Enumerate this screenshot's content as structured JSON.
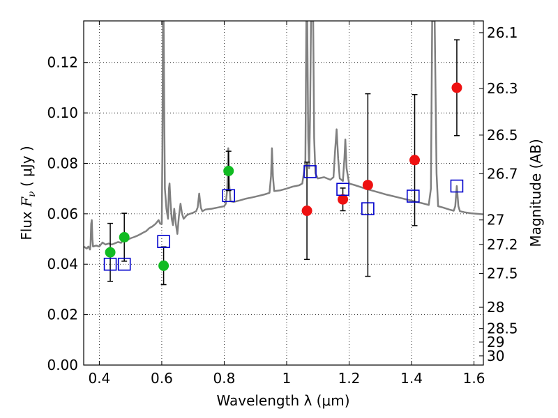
{
  "chart_data": {
    "type": "scatter",
    "title": "",
    "xlabel": "Wavelength  λ (μm)",
    "ylabel": "Flux  F_ν  ( μJy )",
    "ylabel_parts": {
      "prefix": "Flux  ",
      "symbol": "F",
      "subscript": "ν",
      "suffix": "  ( μJy )"
    },
    "y2label": "Magnitude (AB)",
    "xlim": [
      0.35,
      1.63
    ],
    "ylim": [
      0.0,
      0.1365
    ],
    "grid": true,
    "grid_style": "dotted",
    "x_ticks": [
      0.4,
      0.6,
      0.8,
      1.0,
      1.2,
      1.4,
      1.6
    ],
    "x_tick_labels": [
      "0.4",
      "0.6",
      "0.8",
      "1",
      "1.2",
      "1.4",
      "1.6"
    ],
    "y_ticks": [
      0.0,
      0.02,
      0.04,
      0.06,
      0.08,
      0.1,
      0.12
    ],
    "y_tick_labels": [
      "0.00",
      "0.02",
      "0.04",
      "0.06",
      "0.08",
      "0.10",
      "0.12"
    ],
    "y2_ticks_mag": [
      26.1,
      26.3,
      26.5,
      26.7,
      27,
      27.2,
      27.5,
      28,
      28.5,
      29,
      30
    ],
    "y2_tick_labels": [
      "26.1",
      "26.3",
      "26.5",
      "26.7",
      "27",
      "27.2",
      "27.5",
      "28",
      "28.5",
      "29",
      "30"
    ],
    "colors": {
      "spectrum": "#808080",
      "green_points": "#11bb22",
      "red_points": "#ee1111",
      "model_boxes": "#0000cc",
      "errorbar": "#000000"
    },
    "series": [
      {
        "marker": "filled-circle",
        "color_key": "green_points",
        "points": [
          {
            "x": 0.435,
            "y": 0.0447,
            "err": 0.0115
          },
          {
            "x": 0.48,
            "y": 0.0507,
            "err": 0.0095
          },
          {
            "x": 0.606,
            "y": 0.0394,
            "err": 0.0075
          },
          {
            "x": 0.814,
            "y": 0.077,
            "err": 0.0078
          }
        ]
      },
      {
        "marker": "filled-circle",
        "color_key": "red_points",
        "points": [
          {
            "x": 1.065,
            "y": 0.0612,
            "err": 0.0193
          },
          {
            "x": 1.18,
            "y": 0.0657,
            "err": 0.0045
          },
          {
            "x": 1.26,
            "y": 0.0714,
            "err": 0.0362
          },
          {
            "x": 1.41,
            "y": 0.0813,
            "err": 0.026
          },
          {
            "x": 1.545,
            "y": 0.11,
            "err": 0.019
          }
        ]
      },
      {
        "marker": "open-square",
        "color_key": "model_boxes",
        "points": [
          {
            "x": 0.435,
            "y": 0.04
          },
          {
            "x": 0.48,
            "y": 0.04
          },
          {
            "x": 0.606,
            "y": 0.049
          },
          {
            "x": 0.814,
            "y": 0.0672
          },
          {
            "x": 1.075,
            "y": 0.0767
          },
          {
            "x": 1.18,
            "y": 0.0697
          },
          {
            "x": 1.26,
            "y": 0.062
          },
          {
            "x": 1.405,
            "y": 0.067
          },
          {
            "x": 1.545,
            "y": 0.071
          }
        ]
      },
      {
        "marker": "line",
        "color_key": "spectrum",
        "points": [
          [
            0.35,
            0.047
          ],
          [
            0.36,
            0.0462
          ],
          [
            0.365,
            0.047
          ],
          [
            0.37,
            0.0458
          ],
          [
            0.372,
            0.0475
          ],
          [
            0.374,
            0.056
          ],
          [
            0.376,
            0.0575
          ],
          [
            0.378,
            0.05
          ],
          [
            0.38,
            0.047
          ],
          [
            0.39,
            0.0474
          ],
          [
            0.4,
            0.047
          ],
          [
            0.41,
            0.0486
          ],
          [
            0.42,
            0.0478
          ],
          [
            0.43,
            0.0482
          ],
          [
            0.44,
            0.0478
          ],
          [
            0.45,
            0.0483
          ],
          [
            0.46,
            0.0488
          ],
          [
            0.47,
            0.0485
          ],
          [
            0.48,
            0.05
          ],
          [
            0.49,
            0.0496
          ],
          [
            0.5,
            0.0503
          ],
          [
            0.51,
            0.0507
          ],
          [
            0.52,
            0.0512
          ],
          [
            0.53,
            0.0518
          ],
          [
            0.54,
            0.0525
          ],
          [
            0.55,
            0.0531
          ],
          [
            0.56,
            0.0543
          ],
          [
            0.57,
            0.055
          ],
          [
            0.58,
            0.056
          ],
          [
            0.59,
            0.0575
          ],
          [
            0.595,
            0.056
          ],
          [
            0.6,
            0.056
          ],
          [
            0.602,
            0.085
          ],
          [
            0.604,
            0.1365
          ],
          [
            0.606,
            0.1365
          ],
          [
            0.608,
            0.1
          ],
          [
            0.61,
            0.07
          ],
          [
            0.615,
            0.062
          ],
          [
            0.62,
            0.058
          ],
          [
            0.623,
            0.07
          ],
          [
            0.625,
            0.072
          ],
          [
            0.628,
            0.065
          ],
          [
            0.632,
            0.058
          ],
          [
            0.636,
            0.0555
          ],
          [
            0.64,
            0.062
          ],
          [
            0.645,
            0.056
          ],
          [
            0.65,
            0.052
          ],
          [
            0.655,
            0.059
          ],
          [
            0.66,
            0.064
          ],
          [
            0.665,
            0.06
          ],
          [
            0.67,
            0.058
          ],
          [
            0.68,
            0.0594
          ],
          [
            0.69,
            0.06
          ],
          [
            0.7,
            0.0604
          ],
          [
            0.71,
            0.061
          ],
          [
            0.715,
            0.0625
          ],
          [
            0.72,
            0.068
          ],
          [
            0.725,
            0.0625
          ],
          [
            0.73,
            0.061
          ],
          [
            0.74,
            0.0617
          ],
          [
            0.76,
            0.062
          ],
          [
            0.78,
            0.0625
          ],
          [
            0.8,
            0.063
          ],
          [
            0.805,
            0.064
          ],
          [
            0.81,
            0.07
          ],
          [
            0.813,
            0.086
          ],
          [
            0.816,
            0.072
          ],
          [
            0.82,
            0.065
          ],
          [
            0.83,
            0.0647
          ],
          [
            0.85,
            0.0653
          ],
          [
            0.87,
            0.066
          ],
          [
            0.89,
            0.0665
          ],
          [
            0.91,
            0.0671
          ],
          [
            0.93,
            0.0677
          ],
          [
            0.945,
            0.0683
          ],
          [
            0.95,
            0.075
          ],
          [
            0.953,
            0.086
          ],
          [
            0.956,
            0.075
          ],
          [
            0.96,
            0.069
          ],
          [
            0.98,
            0.0693
          ],
          [
            1.0,
            0.07
          ],
          [
            1.02,
            0.0708
          ],
          [
            1.04,
            0.0713
          ],
          [
            1.05,
            0.072
          ],
          [
            1.06,
            0.08
          ],
          [
            1.063,
            0.1365
          ],
          [
            1.066,
            0.1365
          ],
          [
            1.069,
            0.09
          ],
          [
            1.072,
            0.078
          ],
          [
            1.075,
            0.1
          ],
          [
            1.078,
            0.1365
          ],
          [
            1.085,
            0.1365
          ],
          [
            1.088,
            0.09
          ],
          [
            1.092,
            0.076
          ],
          [
            1.1,
            0.074
          ],
          [
            1.12,
            0.0745
          ],
          [
            1.14,
            0.0735
          ],
          [
            1.15,
            0.0745
          ],
          [
            1.155,
            0.085
          ],
          [
            1.16,
            0.0935
          ],
          [
            1.165,
            0.082
          ],
          [
            1.17,
            0.074
          ],
          [
            1.18,
            0.073
          ],
          [
            1.185,
            0.082
          ],
          [
            1.188,
            0.0895
          ],
          [
            1.192,
            0.078
          ],
          [
            1.2,
            0.072
          ],
          [
            1.22,
            0.0713
          ],
          [
            1.24,
            0.0705
          ],
          [
            1.26,
            0.0697
          ],
          [
            1.28,
            0.069
          ],
          [
            1.3,
            0.0683
          ],
          [
            1.32,
            0.0676
          ],
          [
            1.34,
            0.067
          ],
          [
            1.36,
            0.0664
          ],
          [
            1.38,
            0.0658
          ],
          [
            1.4,
            0.0652
          ],
          [
            1.42,
            0.0646
          ],
          [
            1.44,
            0.064
          ],
          [
            1.455,
            0.0635
          ],
          [
            1.462,
            0.07
          ],
          [
            1.466,
            0.1365
          ],
          [
            1.474,
            0.1365
          ],
          [
            1.48,
            0.076
          ],
          [
            1.485,
            0.063
          ],
          [
            1.5,
            0.0625
          ],
          [
            1.52,
            0.0617
          ],
          [
            1.535,
            0.0612
          ],
          [
            1.54,
            0.063
          ],
          [
            1.545,
            0.071
          ],
          [
            1.55,
            0.063
          ],
          [
            1.555,
            0.061
          ],
          [
            1.57,
            0.0606
          ],
          [
            1.59,
            0.0602
          ],
          [
            1.61,
            0.06
          ],
          [
            1.63,
            0.0598
          ]
        ]
      }
    ]
  }
}
